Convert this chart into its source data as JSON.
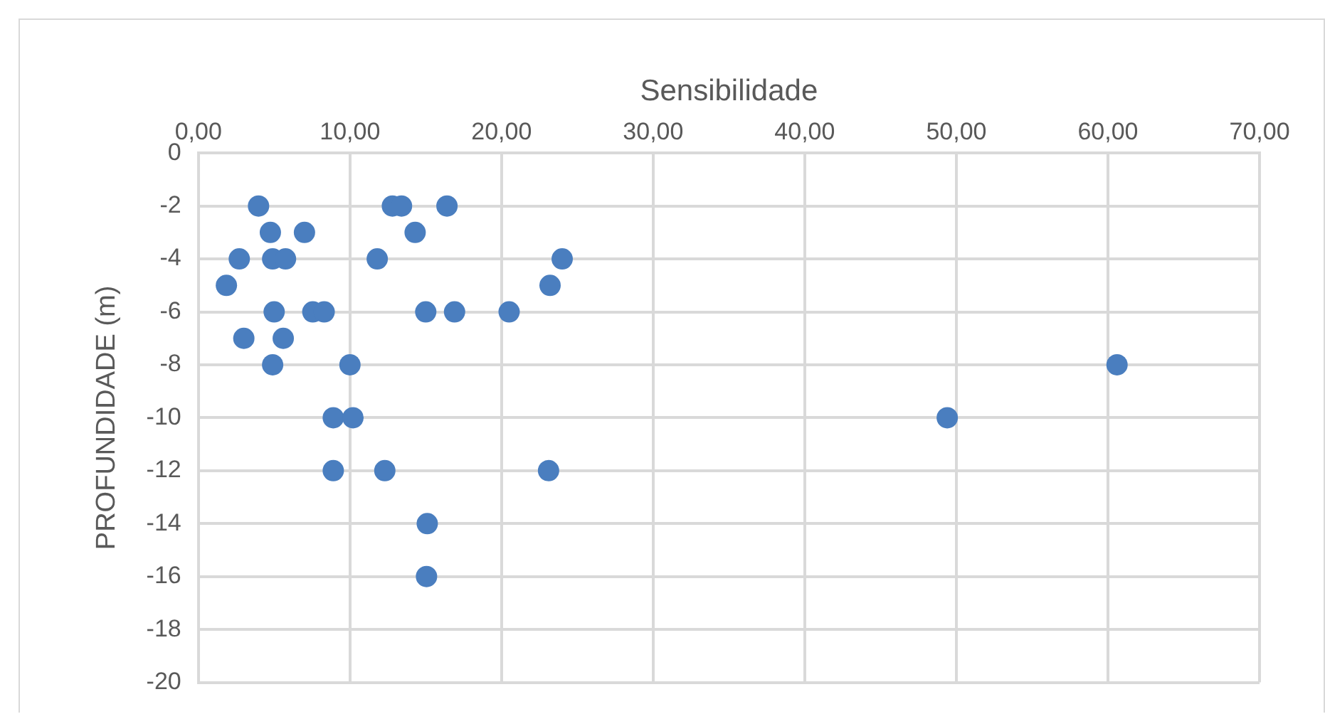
{
  "chart_data": {
    "type": "scatter",
    "xlabel": "Sensibilidade",
    "ylabel": "PROFUNDIDADE (m)",
    "x": [
      3.97,
      12.8,
      13.4,
      16.4,
      4.75,
      7.0,
      14.3,
      2.7,
      4.9,
      5.75,
      11.8,
      24.0,
      1.85,
      23.2,
      5.0,
      7.55,
      8.3,
      15.0,
      16.9,
      20.5,
      3.0,
      5.6,
      4.9,
      10.0,
      8.9,
      10.2,
      8.9,
      12.3,
      23.1,
      15.1,
      15.05,
      60.6,
      49.4
    ],
    "series": [
      {
        "color": "#4a7ebf",
        "values": [
          -2,
          -2,
          -2,
          -2,
          -3,
          -3,
          -3,
          -4,
          -4,
          -4,
          -4,
          -4,
          -5,
          -5,
          -6,
          -6,
          -6,
          -6,
          -6,
          -6,
          -7,
          -7,
          -8,
          -8,
          -10,
          -10,
          -12,
          -12,
          -12,
          -14,
          -16,
          -8,
          -10
        ]
      }
    ],
    "xlim": [
      0,
      70
    ],
    "xticks": [
      {
        "value": 0,
        "label": "0,00"
      },
      {
        "value": 10,
        "label": "10,00"
      },
      {
        "value": 20,
        "label": "20,00"
      },
      {
        "value": 30,
        "label": "30,00"
      },
      {
        "value": 40,
        "label": "40,00"
      },
      {
        "value": 50,
        "label": "50,00"
      },
      {
        "value": 60,
        "label": "60,00"
      },
      {
        "value": 70,
        "label": "70,00"
      }
    ],
    "ylim": [
      -20,
      0
    ],
    "yticks": [
      0,
      -2,
      -4,
      -6,
      -8,
      -10,
      -12,
      -14,
      -16,
      -18,
      -20
    ],
    "grid": true,
    "legend": false,
    "marker": "circle"
  }
}
